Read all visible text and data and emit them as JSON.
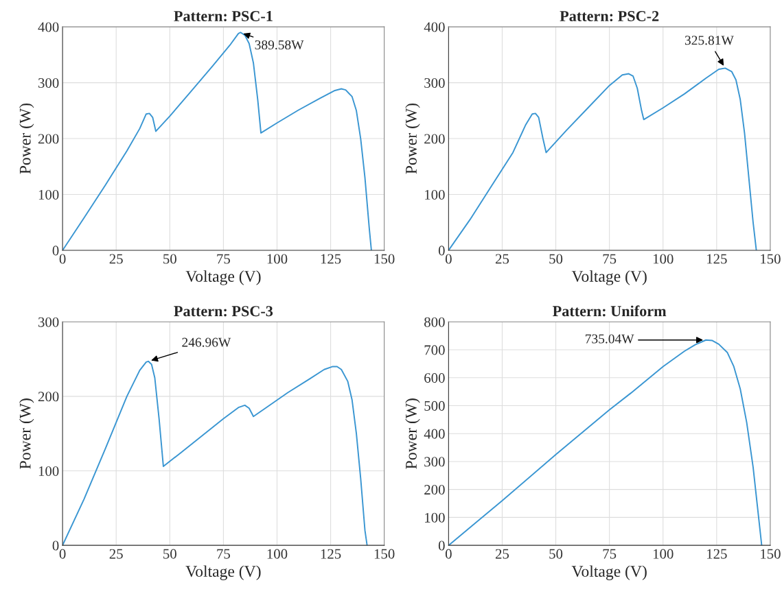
{
  "chart_data": [
    {
      "type": "line",
      "title": "Pattern: PSC-1",
      "xlabel": "Voltage (V)",
      "ylabel": "Power (W)",
      "xlim": [
        0,
        150
      ],
      "xticks": [
        0,
        25,
        50,
        75,
        100,
        125,
        150
      ],
      "ylim": [
        0,
        400
      ],
      "yticks": [
        0,
        100,
        200,
        300,
        400
      ],
      "grid": true,
      "series": [
        {
          "color": "#3a96d2",
          "x": [
            0,
            10,
            20,
            30,
            36,
            39,
            40.5,
            42,
            43.5,
            50,
            60,
            70,
            78,
            82,
            83,
            85,
            87,
            89,
            91,
            92.5,
            100,
            110,
            120,
            127,
            130,
            132,
            135,
            137,
            139,
            141,
            143,
            144
          ],
          "values": [
            0,
            58,
            117,
            178,
            218,
            244,
            245,
            238,
            213,
            240,
            285,
            330,
            367,
            388,
            390,
            385,
            370,
            335,
            270,
            210,
            228,
            251,
            272,
            286,
            289,
            287,
            275,
            250,
            200,
            130,
            40,
            0
          ]
        }
      ],
      "annotations": [
        {
          "text": "389.58W",
          "x": 83,
          "y": 389.58
        }
      ]
    },
    {
      "type": "line",
      "title": "Pattern: PSC-2",
      "xlabel": "Voltage (V)",
      "ylabel": "Power (W)",
      "xlim": [
        0,
        150
      ],
      "xticks": [
        0,
        25,
        50,
        75,
        100,
        125,
        150
      ],
      "ylim": [
        0,
        400
      ],
      "yticks": [
        0,
        100,
        200,
        300,
        400
      ],
      "grid": true,
      "series": [
        {
          "color": "#3a96d2",
          "x": [
            0,
            10,
            20,
            30,
            36,
            39,
            40.5,
            42,
            44,
            45.5,
            55,
            65,
            75,
            81,
            84,
            86,
            88,
            90,
            91,
            100,
            110,
            120,
            126,
            129,
            132,
            134,
            136,
            138,
            140,
            142,
            143.5
          ],
          "values": [
            0,
            55,
            115,
            175,
            225,
            244,
            245,
            238,
            200,
            175,
            215,
            255,
            295,
            314,
            316,
            312,
            290,
            250,
            234,
            255,
            280,
            308,
            324,
            326,
            320,
            305,
            270,
            210,
            130,
            50,
            0
          ]
        }
      ],
      "annotations": [
        {
          "text": "325.81W",
          "x": 129,
          "y": 325.81
        }
      ]
    },
    {
      "type": "line",
      "title": "Pattern: PSC-3",
      "xlabel": "Voltage (V)",
      "ylabel": "Power (W)",
      "xlim": [
        0,
        150
      ],
      "xticks": [
        0,
        25,
        50,
        75,
        100,
        125,
        150
      ],
      "ylim": [
        0,
        300
      ],
      "yticks": [
        0,
        100,
        200,
        300
      ],
      "grid": true,
      "series": [
        {
          "color": "#3a96d2",
          "x": [
            0,
            10,
            20,
            30,
            36,
            39,
            40,
            41.5,
            43,
            45,
            47,
            55,
            65,
            75,
            82,
            85,
            87,
            89,
            95,
            105,
            115,
            122,
            126,
            128,
            130,
            133,
            135,
            137,
            139,
            141,
            142
          ],
          "values": [
            0,
            62,
            130,
            200,
            235,
            246,
            247,
            243,
            225,
            170,
            106,
            124,
            147,
            170,
            185,
            188,
            184,
            173,
            185,
            205,
            223,
            236,
            240,
            240,
            236,
            220,
            195,
            150,
            90,
            20,
            0
          ]
        }
      ],
      "annotations": [
        {
          "text": "246.96W",
          "x": 40,
          "y": 246.96
        }
      ]
    },
    {
      "type": "line",
      "title": "Pattern: Uniform",
      "xlabel": "Voltage (V)",
      "ylabel": "Power (W)",
      "xlim": [
        0,
        150
      ],
      "xticks": [
        0,
        25,
        50,
        75,
        100,
        125,
        150
      ],
      "ylim": [
        0,
        800
      ],
      "yticks": [
        0,
        100,
        200,
        300,
        400,
        500,
        600,
        700,
        800
      ],
      "grid": true,
      "series": [
        {
          "color": "#3a96d2",
          "x": [
            0,
            25,
            50,
            75,
            85,
            100,
            110,
            115,
            120,
            123,
            126,
            130,
            133,
            136,
            139,
            142,
            144,
            146
          ],
          "values": [
            0,
            160,
            325,
            485,
            545,
            640,
            695,
            718,
            735,
            733,
            720,
            690,
            640,
            560,
            440,
            280,
            140,
            0
          ]
        }
      ],
      "annotations": [
        {
          "text": "735.04W",
          "x": 120,
          "y": 735.04
        }
      ]
    }
  ]
}
